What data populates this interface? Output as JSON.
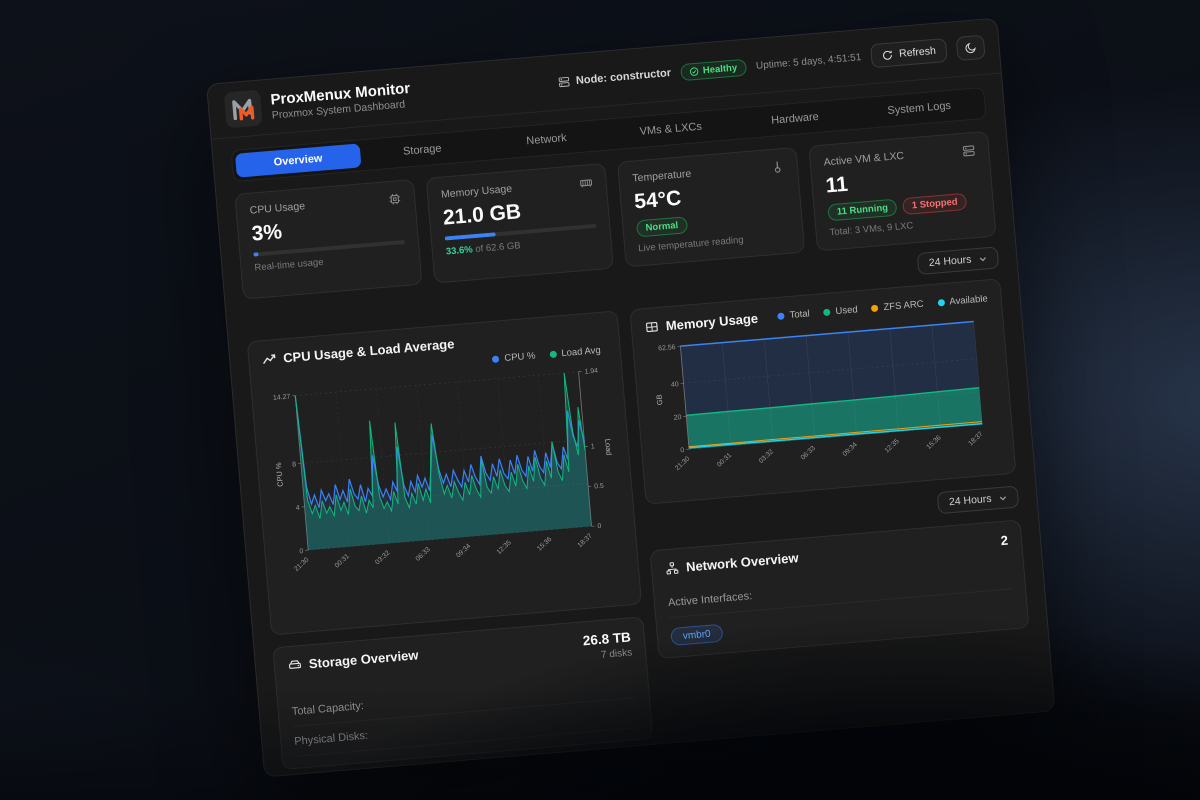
{
  "header": {
    "title": "ProxMenux Monitor",
    "subtitle": "Proxmox System Dashboard",
    "node_label": "Node: constructor",
    "health_badge": "Healthy",
    "uptime": "Uptime: 5 days, 4:51:51",
    "refresh_label": "Refresh"
  },
  "tabs": [
    {
      "label": "Overview",
      "active": true
    },
    {
      "label": "Storage",
      "active": false
    },
    {
      "label": "Network",
      "active": false
    },
    {
      "label": "VMs & LXCs",
      "active": false
    },
    {
      "label": "Hardware",
      "active": false
    },
    {
      "label": "System Logs",
      "active": false
    }
  ],
  "stats": {
    "cpu": {
      "label": "CPU Usage",
      "value": "3%",
      "percent": 3,
      "sub": "Real-time usage"
    },
    "memory": {
      "label": "Memory Usage",
      "value": "21.0 GB",
      "percent": 33.6,
      "sub_pct": "33.6%",
      "sub_rest": " of 62.6 GB"
    },
    "temperature": {
      "label": "Temperature",
      "value": "54°C",
      "badge": "Normal",
      "sub": "Live temperature reading"
    },
    "vm": {
      "label": "Active VM & LXC",
      "value": "11",
      "running": "11 Running",
      "stopped": "1 Stopped",
      "sub": "Total: 3 VMs, 9 LXC"
    }
  },
  "time_range_primary": "24 Hours",
  "time_range_secondary": "24 Hours",
  "storage": {
    "title": "Storage Overview",
    "capacity_value": "26.8 TB",
    "disks_value": "7 disks",
    "row1_label": "Total Capacity:",
    "row2_label": "Physical Disks:"
  },
  "network": {
    "title": "Network Overview",
    "count": "2",
    "active_interfaces_label": "Active Interfaces:",
    "interface_badge": "vmbr0"
  },
  "colors": {
    "accent_blue": "#3b82f6",
    "green": "#10b981",
    "orange": "#f59e0b",
    "cyan": "#22d3ee",
    "red": "#ef4444"
  },
  "chart_data": [
    {
      "type": "line",
      "title": "CPU Usage & Load Average",
      "x_labels": [
        "21:30",
        "00:31",
        "03:32",
        "06:33",
        "09:34",
        "12:35",
        "15:36",
        "18:37"
      ],
      "left_axis": {
        "label": "CPU %",
        "max": 14.27,
        "ticks": [
          0,
          4,
          8,
          14.27
        ]
      },
      "right_axis": {
        "label": "Load",
        "max": 1.94,
        "ticks": [
          0,
          0.5,
          1,
          1.94
        ]
      },
      "grid": true,
      "legend_position": "top-right",
      "series": [
        {
          "name": "CPU %",
          "color": "#3b82f6",
          "axis": "left",
          "values": [
            14.27,
            5.8,
            4.2,
            5.0,
            3.8,
            5.4,
            4.4,
            5.0,
            4.0,
            5.8,
            4.4,
            5.2,
            4.1,
            6.2,
            4.8,
            4.3,
            5.6,
            4.0,
            5.2,
            4.5,
            8.2,
            5.4,
            4.3,
            5.0,
            4.0,
            5.6,
            4.7,
            8.8,
            5.2,
            4.2,
            5.5,
            4.5,
            6.0,
            4.9,
            5.7,
            4.5,
            6.8,
            9.6,
            6.4,
            5.1,
            5.9,
            4.7,
            6.2,
            5.3,
            4.6,
            6.1,
            5.0,
            6.6,
            5.4,
            4.7,
            7.3,
            5.7,
            5.0,
            6.5,
            5.3,
            6.9,
            5.5,
            5.0,
            6.7,
            5.4,
            7.1,
            5.7,
            5.1,
            6.9,
            5.5,
            7.4,
            5.9,
            5.3,
            7.1,
            5.7,
            7.9,
            6.1,
            5.5,
            7.5,
            6.3,
            10.8,
            8.4,
            7.4,
            9.8,
            7.8
          ]
        },
        {
          "name": "Load Avg",
          "color": "#10b981",
          "axis": "right",
          "values": [
            1.94,
            0.62,
            0.45,
            0.55,
            0.38,
            0.6,
            0.44,
            0.52,
            0.4,
            0.66,
            0.46,
            0.56,
            0.4,
            0.72,
            0.5,
            0.44,
            0.62,
            0.4,
            0.56,
            0.46,
            1.55,
            0.6,
            0.44,
            0.52,
            0.4,
            0.64,
            0.48,
            1.5,
            0.56,
            0.42,
            0.6,
            0.46,
            0.72,
            0.5,
            0.64,
            0.46,
            1.0,
            1.45,
            0.8,
            0.56,
            0.66,
            0.5,
            0.7,
            0.56,
            0.46,
            0.68,
            0.52,
            0.76,
            0.58,
            0.48,
            0.95,
            0.6,
            0.52,
            0.72,
            0.56,
            0.8,
            0.6,
            0.52,
            0.76,
            0.58,
            0.85,
            0.64,
            0.54,
            0.82,
            0.62,
            0.92,
            0.66,
            0.56,
            0.86,
            0.64,
            1.1,
            0.72,
            0.6,
            0.92,
            0.7,
            1.94,
            1.2,
            0.9,
            1.5,
            0.95
          ]
        }
      ]
    },
    {
      "type": "area",
      "title": "Memory Usage",
      "ylabel": "GB",
      "x_labels": [
        "21:30",
        "00:31",
        "03:32",
        "06:33",
        "09:34",
        "12:35",
        "15:36",
        "18:37"
      ],
      "y_ticks": [
        0,
        20,
        40,
        62.56
      ],
      "ymax": 62.56,
      "grid": true,
      "legend_position": "top-right",
      "series": [
        {
          "name": "Total",
          "color": "#3b82f6",
          "values": [
            62.56,
            62.56,
            62.56,
            62.56,
            62.56,
            62.56,
            62.56,
            62.56
          ]
        },
        {
          "name": "Used",
          "color": "#10b981",
          "values": [
            20.6,
            20.8,
            20.9,
            21.1,
            21.3,
            21.6,
            22.0,
            22.4
          ]
        },
        {
          "name": "ZFS ARC",
          "color": "#f59e0b",
          "values": [
            1.5,
            1.5,
            1.6,
            1.6,
            1.7,
            1.7,
            1.8,
            1.8
          ]
        },
        {
          "name": "Available",
          "color": "#22d3ee",
          "values": [
            0.8,
            0.8,
            0.7,
            0.7,
            0.7,
            0.6,
            0.6,
            0.6
          ]
        }
      ]
    }
  ]
}
